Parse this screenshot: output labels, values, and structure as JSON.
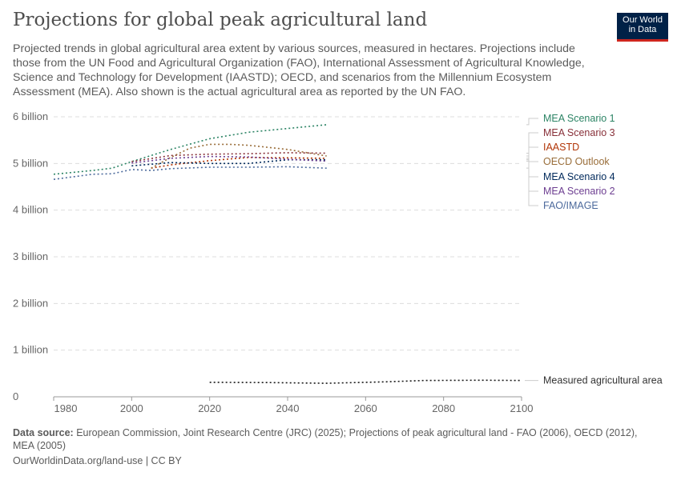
{
  "title": "Projections for global peak agricultural land",
  "subtitle": "Projected trends in global agricultural area extent by various sources, measured in hectares. Projections include those from the UN Food and Agricultural Organization (FAO), International Assessment of Agricultural Knowledge, Science and Technology for Development (IAASTD); OECD, and scenarios from the Millennium Ecosystem Assessment (MEA). Also shown is the actual agricultural area as reported by the UN FAO.",
  "logo": {
    "line1": "Our World",
    "line2": "in Data"
  },
  "footer": {
    "source_label": "Data source:",
    "source_text": " European Commission, Joint Research Centre (JRC) (2025); Projections of peak agricultural land - FAO (2006), OECD (2012), MEA (2005)",
    "url": "OurWorldinData.org/land-use | CC BY"
  },
  "chart_data": {
    "type": "line",
    "xlim": [
      1980,
      2100
    ],
    "ylim": [
      0,
      6000000000
    ],
    "x_ticks": [
      "1980",
      "2000",
      "2020",
      "2040",
      "2060",
      "2080",
      "2100"
    ],
    "y_ticks": [
      "0",
      "1 billion",
      "2 billion",
      "3 billion",
      "4 billion",
      "5 billion",
      "6 billion"
    ],
    "grid": true,
    "line_style": "dotted",
    "series": [
      {
        "name": "MEA Scenario 1",
        "color": "#2c8465",
        "x": [
          1980,
          1990,
          1995,
          2000,
          2010,
          2020,
          2030,
          2040,
          2050
        ],
        "y": [
          4770000000.0,
          4850000000.0,
          4900000000.0,
          5040000000.0,
          5300000000.0,
          5530000000.0,
          5670000000.0,
          5750000000.0,
          5830000000.0
        ]
      },
      {
        "name": "MEA Scenario 3",
        "color": "#883039",
        "x": [
          2000,
          2010,
          2020,
          2030,
          2040,
          2050
        ],
        "y": [
          5040000000.0,
          5170000000.0,
          5200000000.0,
          5210000000.0,
          5230000000.0,
          5220000000.0
        ]
      },
      {
        "name": "IAASTD",
        "color": "#b13507",
        "x": [
          2005,
          2010,
          2020,
          2030,
          2040,
          2050
        ],
        "y": [
          4900000000.0,
          4970000000.0,
          5060000000.0,
          5130000000.0,
          5120000000.0,
          5110000000.0
        ]
      },
      {
        "name": "OECD Outlook",
        "color": "#996d39",
        "x": [
          2005,
          2010,
          2015,
          2020,
          2025,
          2030,
          2040,
          2050
        ],
        "y": [
          4900000000.0,
          5130000000.0,
          5330000000.0,
          5410000000.0,
          5410000000.0,
          5390000000.0,
          5300000000.0,
          5160000000.0
        ]
      },
      {
        "name": "MEA Scenario 4",
        "color": "#00295b",
        "x": [
          2000,
          2010,
          2020,
          2030,
          2040,
          2050
        ],
        "y": [
          4950000000.0,
          5020000000.0,
          5000000000.0,
          5000000000.0,
          5080000000.0,
          5080000000.0
        ]
      },
      {
        "name": "MEA Scenario 2",
        "color": "#6d3e91",
        "x": [
          2000,
          2010,
          2020,
          2030,
          2040,
          2050
        ],
        "y": [
          5010000000.0,
          5110000000.0,
          5150000000.0,
          5140000000.0,
          5090000000.0,
          5050000000.0
        ]
      },
      {
        "name": "FAO/IMAGE",
        "color": "#4c6a9c",
        "x": [
          1980,
          1990,
          1995,
          2000,
          2005,
          2010,
          2020,
          2030,
          2040,
          2050
        ],
        "y": [
          4660000000.0,
          4770000000.0,
          4780000000.0,
          4870000000.0,
          4850000000.0,
          4890000000.0,
          4920000000.0,
          4920000000.0,
          4930000000.0,
          4900000000.0
        ]
      },
      {
        "name": "Measured agricultural area",
        "color": "#1a1a1a",
        "x": [
          2020,
          2035,
          2050,
          2065,
          2075,
          2090,
          2100
        ],
        "y": [
          310000000.0,
          305000000.0,
          290000000.0,
          320000000.0,
          350000000.0,
          355000000.0,
          350000000.0
        ]
      }
    ]
  }
}
